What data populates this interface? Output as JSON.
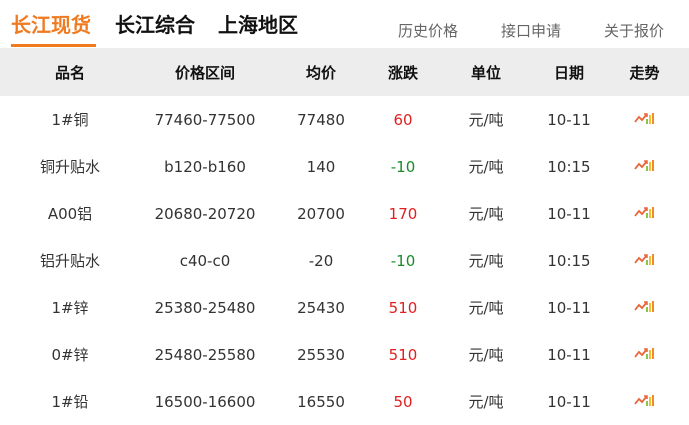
{
  "tabs": [
    {
      "label": "长江现货",
      "active": true
    },
    {
      "label": "长江综合"
    },
    {
      "label": "上海地区"
    }
  ],
  "links": [
    "历史价格",
    "接口申请",
    "关于报价"
  ],
  "columns": [
    "品名",
    "价格区间",
    "均价",
    "涨跌",
    "单位",
    "日期",
    "走势"
  ],
  "colors": {
    "accent": "#f07a20",
    "up": "#e02020",
    "down": "#1a8a2a"
  },
  "rows": [
    {
      "name": "1#铜",
      "range": "77460-77500",
      "avg": "77480",
      "change": "60",
      "dir": "up",
      "unit": "元/吨",
      "date": "10-11",
      "trend": "trend-chart-icon"
    },
    {
      "name": "铜升贴水",
      "range": "b120-b160",
      "avg": "140",
      "change": "-10",
      "dir": "down",
      "unit": "元/吨",
      "date": "10:15",
      "trend": "trend-chart-icon"
    },
    {
      "name": "A00铝",
      "range": "20680-20720",
      "avg": "20700",
      "change": "170",
      "dir": "up",
      "unit": "元/吨",
      "date": "10-11",
      "trend": "trend-chart-icon"
    },
    {
      "name": "铝升贴水",
      "range": "c40-c0",
      "avg": "-20",
      "change": "-10",
      "dir": "down",
      "unit": "元/吨",
      "date": "10:15",
      "trend": "trend-chart-icon"
    },
    {
      "name": "1#锌",
      "range": "25380-25480",
      "avg": "25430",
      "change": "510",
      "dir": "up",
      "unit": "元/吨",
      "date": "10-11",
      "trend": "trend-chart-icon"
    },
    {
      "name": "0#锌",
      "range": "25480-25580",
      "avg": "25530",
      "change": "510",
      "dir": "up",
      "unit": "元/吨",
      "date": "10-11",
      "trend": "trend-chart-icon"
    },
    {
      "name": "1#铅",
      "range": "16500-16600",
      "avg": "16550",
      "change": "50",
      "dir": "up",
      "unit": "元/吨",
      "date": "10-11",
      "trend": "trend-chart-icon"
    }
  ]
}
